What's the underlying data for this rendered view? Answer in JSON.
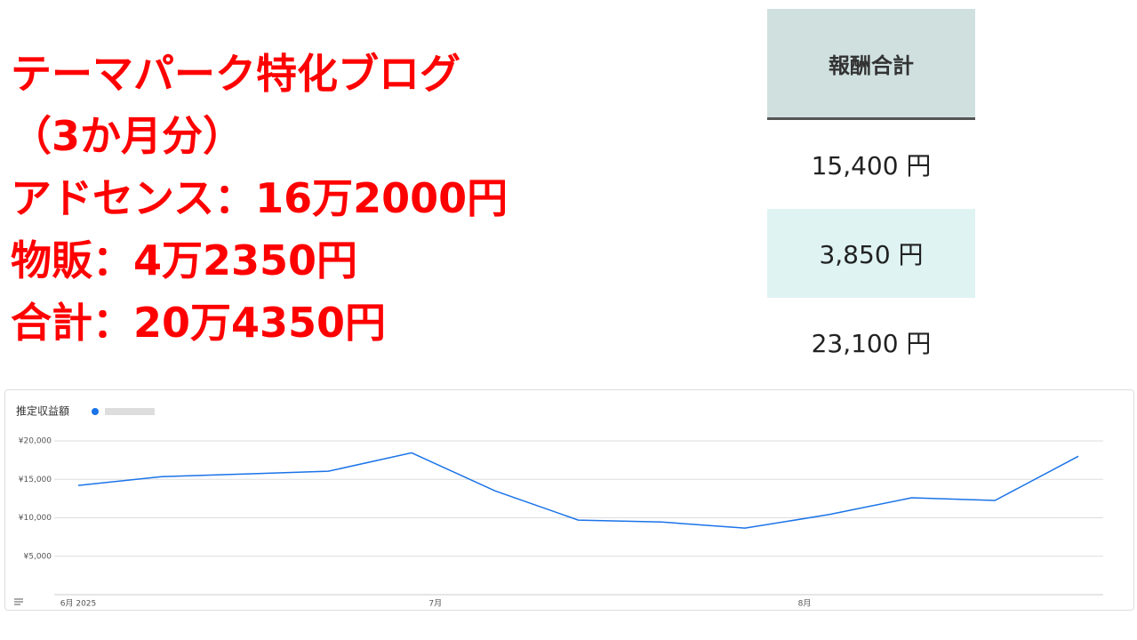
{
  "headline": {
    "lines": [
      "テーマパーク特化ブログ",
      "（3か月分）",
      "アドセンス：16万2000円",
      "物販：4万2350円",
      "合計：20万4350円"
    ]
  },
  "table": {
    "header": "報酬合計",
    "rows": [
      "15,400 円",
      "3,850 円",
      "23,100 円"
    ]
  },
  "chart_data": {
    "type": "line",
    "title": "推定収益額",
    "x": [
      0,
      7,
      14,
      21,
      28,
      35,
      42,
      49,
      56,
      63,
      70,
      77,
      84
    ],
    "series": [
      {
        "color": "#1a73e8",
        "values": [
          14200,
          15350,
          15700,
          16050,
          18450,
          13500,
          9700,
          9450,
          8650,
          10400,
          12600,
          12250,
          18000
        ]
      }
    ],
    "xlim": [
      0,
      84
    ],
    "xticks": [
      {
        "value": 0,
        "label": "6月 2025"
      },
      {
        "value": 30,
        "label": "7月"
      },
      {
        "value": 61,
        "label": "8月"
      }
    ],
    "ylim": [
      0,
      20000
    ],
    "yticks": [
      {
        "value": 5000,
        "label": "¥5,000"
      },
      {
        "value": 10000,
        "label": "¥10,000"
      },
      {
        "value": 15000,
        "label": "¥15,000"
      },
      {
        "value": 20000,
        "label": "¥20,000"
      }
    ],
    "grid": true
  }
}
